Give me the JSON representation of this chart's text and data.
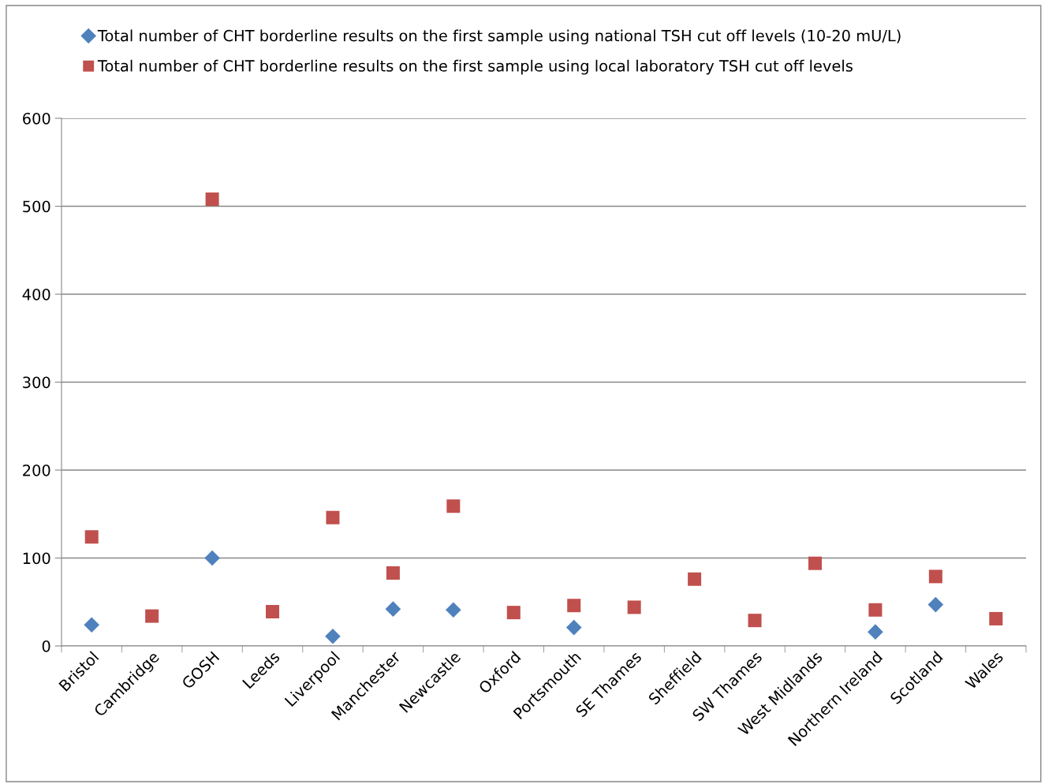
{
  "chart_data": {
    "type": "scatter",
    "categories": [
      "Bristol",
      "Cambridge",
      "GOSH",
      "Leeds",
      "Liverpool",
      "Manchester",
      "Newcastle",
      "Oxford",
      "Portsmouth",
      "SE Thames",
      "Sheffield",
      "SW Thames",
      "West Midlands",
      "Northern Ireland",
      "Scotland",
      "Wales"
    ],
    "series": [
      {
        "name": "Total number of CHT borderline results on the first sample using national TSH cut off levels (10-20 mU/L)",
        "color": "#4f81bd",
        "marker": "diamond",
        "values": [
          24,
          null,
          100,
          null,
          11,
          42,
          41,
          null,
          21,
          null,
          null,
          null,
          null,
          16,
          47,
          null
        ]
      },
      {
        "name": "Total number of CHT borderline results on the first sample using local laboratory TSH cut off levels",
        "color": "#c0504d",
        "marker": "square",
        "values": [
          124,
          34,
          508,
          39,
          146,
          83,
          159,
          38,
          46,
          44,
          76,
          29,
          94,
          41,
          79,
          31
        ]
      }
    ],
    "ylim": [
      0,
      600
    ],
    "yticks": [
      0,
      100,
      200,
      300,
      400,
      500,
      600
    ],
    "grid": "y",
    "legend": "top"
  }
}
